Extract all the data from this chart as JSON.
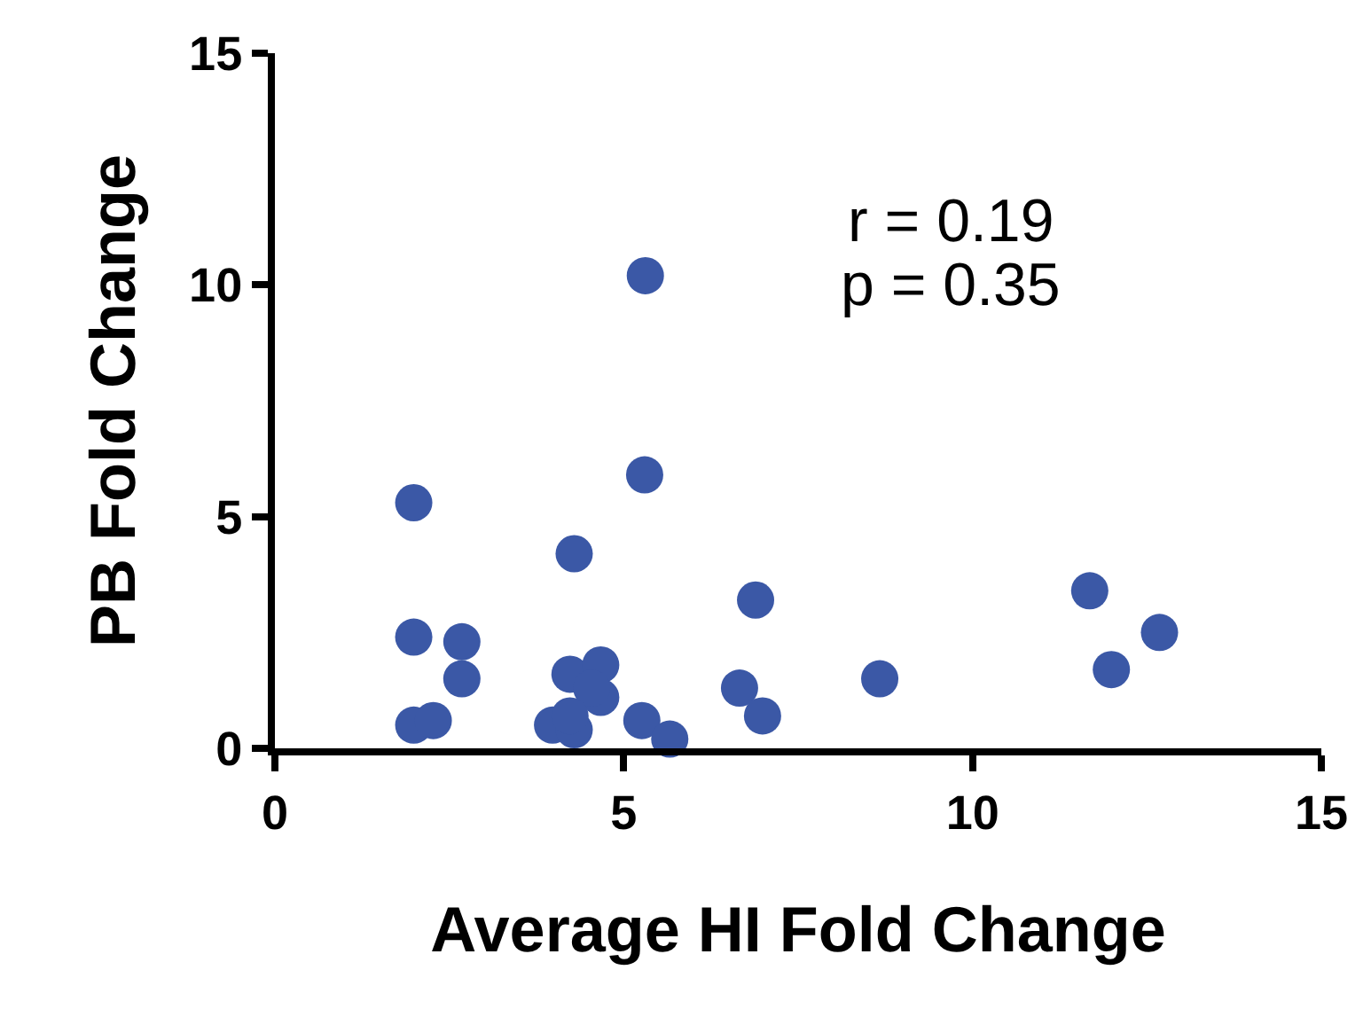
{
  "chart_data": {
    "type": "scatter",
    "xlabel": "Average HI Fold Change",
    "ylabel": "PB Fold Change",
    "x": [
      5.31,
      5.3,
      1.99,
      4.29,
      6.89,
      11.68,
      12.68,
      11.99,
      8.67,
      1.99,
      2.68,
      2.68,
      1.99,
      2.27,
      3.98,
      4.29,
      4.23,
      4.67,
      4.67,
      4.54,
      4.23,
      5.26,
      5.66,
      6.66,
      6.99
    ],
    "series": [
      {
        "color": "#3b58a6",
        "values": [
          10.2,
          5.9,
          5.3,
          4.2,
          3.2,
          3.4,
          2.5,
          1.7,
          1.5,
          2.4,
          2.3,
          1.5,
          0.5,
          0.6,
          0.5,
          0.4,
          1.6,
          1.8,
          1.1,
          1.3,
          0.7,
          0.6,
          0.2,
          1.3,
          0.7
        ]
      }
    ],
    "xlim": [
      0,
      15
    ],
    "xticks": [
      0,
      5,
      10,
      15
    ],
    "ylim": [
      0,
      15
    ],
    "yticks": [
      0,
      5,
      10,
      15
    ],
    "marker": "circle",
    "annotations": [
      "r = 0.19",
      "p = 0.35"
    ]
  }
}
